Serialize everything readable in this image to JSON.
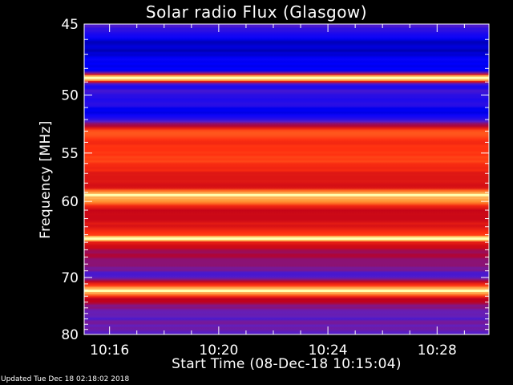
{
  "chart_data": {
    "type": "heatmap",
    "title": "Solar radio Flux (Glasgow)",
    "xlabel": "Start Time (08-Dec-18 10:15:04)",
    "ylabel": "Frequency [MHz]",
    "x_ticks": [
      "10:16",
      "10:20",
      "10:24",
      "10:28"
    ],
    "x_tick_values": [
      16,
      20,
      24,
      28
    ],
    "x_range_minutes_after_10h": [
      15.07,
      29.9
    ],
    "y_ticks": [
      "45",
      "50",
      "55",
      "60",
      "70",
      "80"
    ],
    "y_tick_values": [
      45,
      50,
      55,
      60,
      70,
      80
    ],
    "ylim": [
      45,
      80
    ],
    "y_scale": "reciprocal",
    "colormap": [
      "#000040",
      "#0000ff",
      "#6020c0",
      "#c00018",
      "#ff3010",
      "#ff9030",
      "#ffffb0"
    ],
    "bright_lines_mhz": [
      48.7,
      59.3,
      64.5,
      72.1
    ],
    "intensity_profile": [
      {
        "mhz": 45.0,
        "level": 0.28
      },
      {
        "mhz": 46.0,
        "level": 0.14
      },
      {
        "mhz": 48.2,
        "level": 0.13
      },
      {
        "mhz": 48.7,
        "level": 1.0
      },
      {
        "mhz": 49.2,
        "level": 0.26
      },
      {
        "mhz": 50.5,
        "level": 0.2
      },
      {
        "mhz": 51.5,
        "level": 0.16
      },
      {
        "mhz": 52.5,
        "level": 0.42
      },
      {
        "mhz": 53.0,
        "level": 0.74
      },
      {
        "mhz": 54.0,
        "level": 0.66
      },
      {
        "mhz": 55.0,
        "level": 0.72
      },
      {
        "mhz": 56.5,
        "level": 0.62
      },
      {
        "mhz": 58.5,
        "level": 0.6
      },
      {
        "mhz": 59.3,
        "level": 0.97
      },
      {
        "mhz": 61.0,
        "level": 0.56
      },
      {
        "mhz": 63.0,
        "level": 0.55
      },
      {
        "mhz": 64.5,
        "level": 0.7
      },
      {
        "mhz": 66.0,
        "level": 0.5
      },
      {
        "mhz": 67.5,
        "level": 0.38
      },
      {
        "mhz": 70.0,
        "level": 0.33
      },
      {
        "mhz": 72.1,
        "level": 0.96
      },
      {
        "mhz": 73.5,
        "level": 0.48
      },
      {
        "mhz": 76.0,
        "level": 0.36
      },
      {
        "mhz": 80.0,
        "level": 0.3
      }
    ]
  },
  "footer": "Updated Tue Dec 18 02:18:02 2018"
}
